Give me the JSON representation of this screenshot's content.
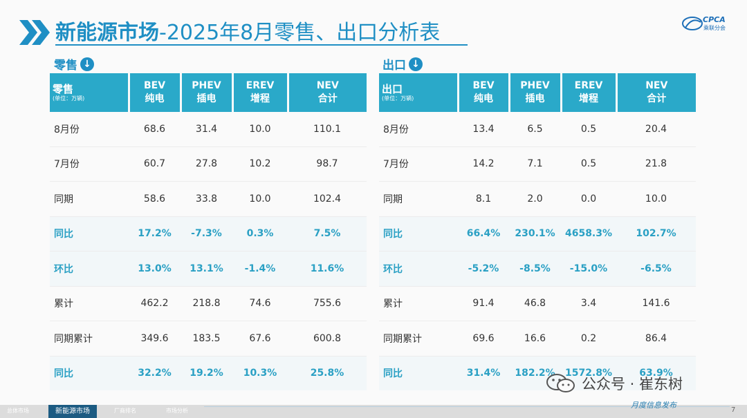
{
  "title": {
    "main": "新能源市场",
    "sub": "-2025年8月零售、出口分析表"
  },
  "logo": {
    "text": "CPCA",
    "sub": "乘联分会"
  },
  "retail": {
    "label": "零售",
    "corner_title": "零售",
    "corner_unit": "(单位：万辆)",
    "columns": [
      {
        "line1": "BEV",
        "line2": "纯电"
      },
      {
        "line1": "PHEV",
        "line2": "插电"
      },
      {
        "line1": "EREV",
        "line2": "增程"
      },
      {
        "line1": "NEV",
        "line2": "合计"
      }
    ],
    "rows": [
      {
        "label": "8月份",
        "values": [
          "68.6",
          "31.4",
          "10.0",
          "110.1"
        ],
        "pct": false
      },
      {
        "label": "7月份",
        "values": [
          "60.7",
          "27.8",
          "10.2",
          "98.7"
        ],
        "pct": false
      },
      {
        "label": "同期",
        "values": [
          "58.6",
          "33.8",
          "10.0",
          "102.4"
        ],
        "pct": false
      },
      {
        "label": "同比",
        "values": [
          "17.2%",
          "-7.3%",
          "0.3%",
          "7.5%"
        ],
        "pct": true
      },
      {
        "label": "环比",
        "values": [
          "13.0%",
          "13.1%",
          "-1.4%",
          "11.6%"
        ],
        "pct": true
      },
      {
        "label": "累计",
        "values": [
          "462.2",
          "218.8",
          "74.6",
          "755.6"
        ],
        "pct": false
      },
      {
        "label": "同期累计",
        "values": [
          "349.6",
          "183.5",
          "67.6",
          "600.8"
        ],
        "pct": false
      },
      {
        "label": "同比",
        "values": [
          "32.2%",
          "19.2%",
          "10.3%",
          "25.8%"
        ],
        "pct": true
      }
    ]
  },
  "export": {
    "label": "出口",
    "corner_title": "出口",
    "corner_unit": "(单位：万辆)",
    "columns": [
      {
        "line1": "BEV",
        "line2": "纯电"
      },
      {
        "line1": "PHEV",
        "line2": "插电"
      },
      {
        "line1": "EREV",
        "line2": "增程"
      },
      {
        "line1": "NEV",
        "line2": "合计"
      }
    ],
    "rows": [
      {
        "label": "8月份",
        "values": [
          "13.4",
          "6.5",
          "0.5",
          "20.4"
        ],
        "pct": false
      },
      {
        "label": "7月份",
        "values": [
          "14.2",
          "7.1",
          "0.5",
          "21.8"
        ],
        "pct": false
      },
      {
        "label": "同期",
        "values": [
          "8.1",
          "2.0",
          "0.0",
          "10.0"
        ],
        "pct": false
      },
      {
        "label": "同比",
        "values": [
          "66.4%",
          "230.1%",
          "4658.3%",
          "102.7%"
        ],
        "pct": true
      },
      {
        "label": "环比",
        "values": [
          "-5.2%",
          "-8.5%",
          "-15.0%",
          "-6.5%"
        ],
        "pct": true
      },
      {
        "label": "累计",
        "values": [
          "91.4",
          "46.8",
          "3.4",
          "141.6"
        ],
        "pct": false
      },
      {
        "label": "同期累计",
        "values": [
          "69.6",
          "16.6",
          "0.2",
          "86.4"
        ],
        "pct": false
      },
      {
        "label": "同比",
        "values": [
          "31.4%",
          "182.2%",
          "1572.8%",
          "63.9%"
        ],
        "pct": true
      }
    ]
  },
  "footer": {
    "nav": [
      "总体市场",
      "新能源市场",
      "厂商排名",
      "市场分析"
    ],
    "active_index": 1,
    "tagline": "月度信息发布",
    "page": "7"
  },
  "watermark": {
    "text": "公众号 · 崔东树"
  },
  "colors": {
    "accent": "#1f8fc4",
    "header_fill": "#2aa9c9",
    "pct_text": "#2aa0c4",
    "nav_active": "#1c5b82"
  }
}
